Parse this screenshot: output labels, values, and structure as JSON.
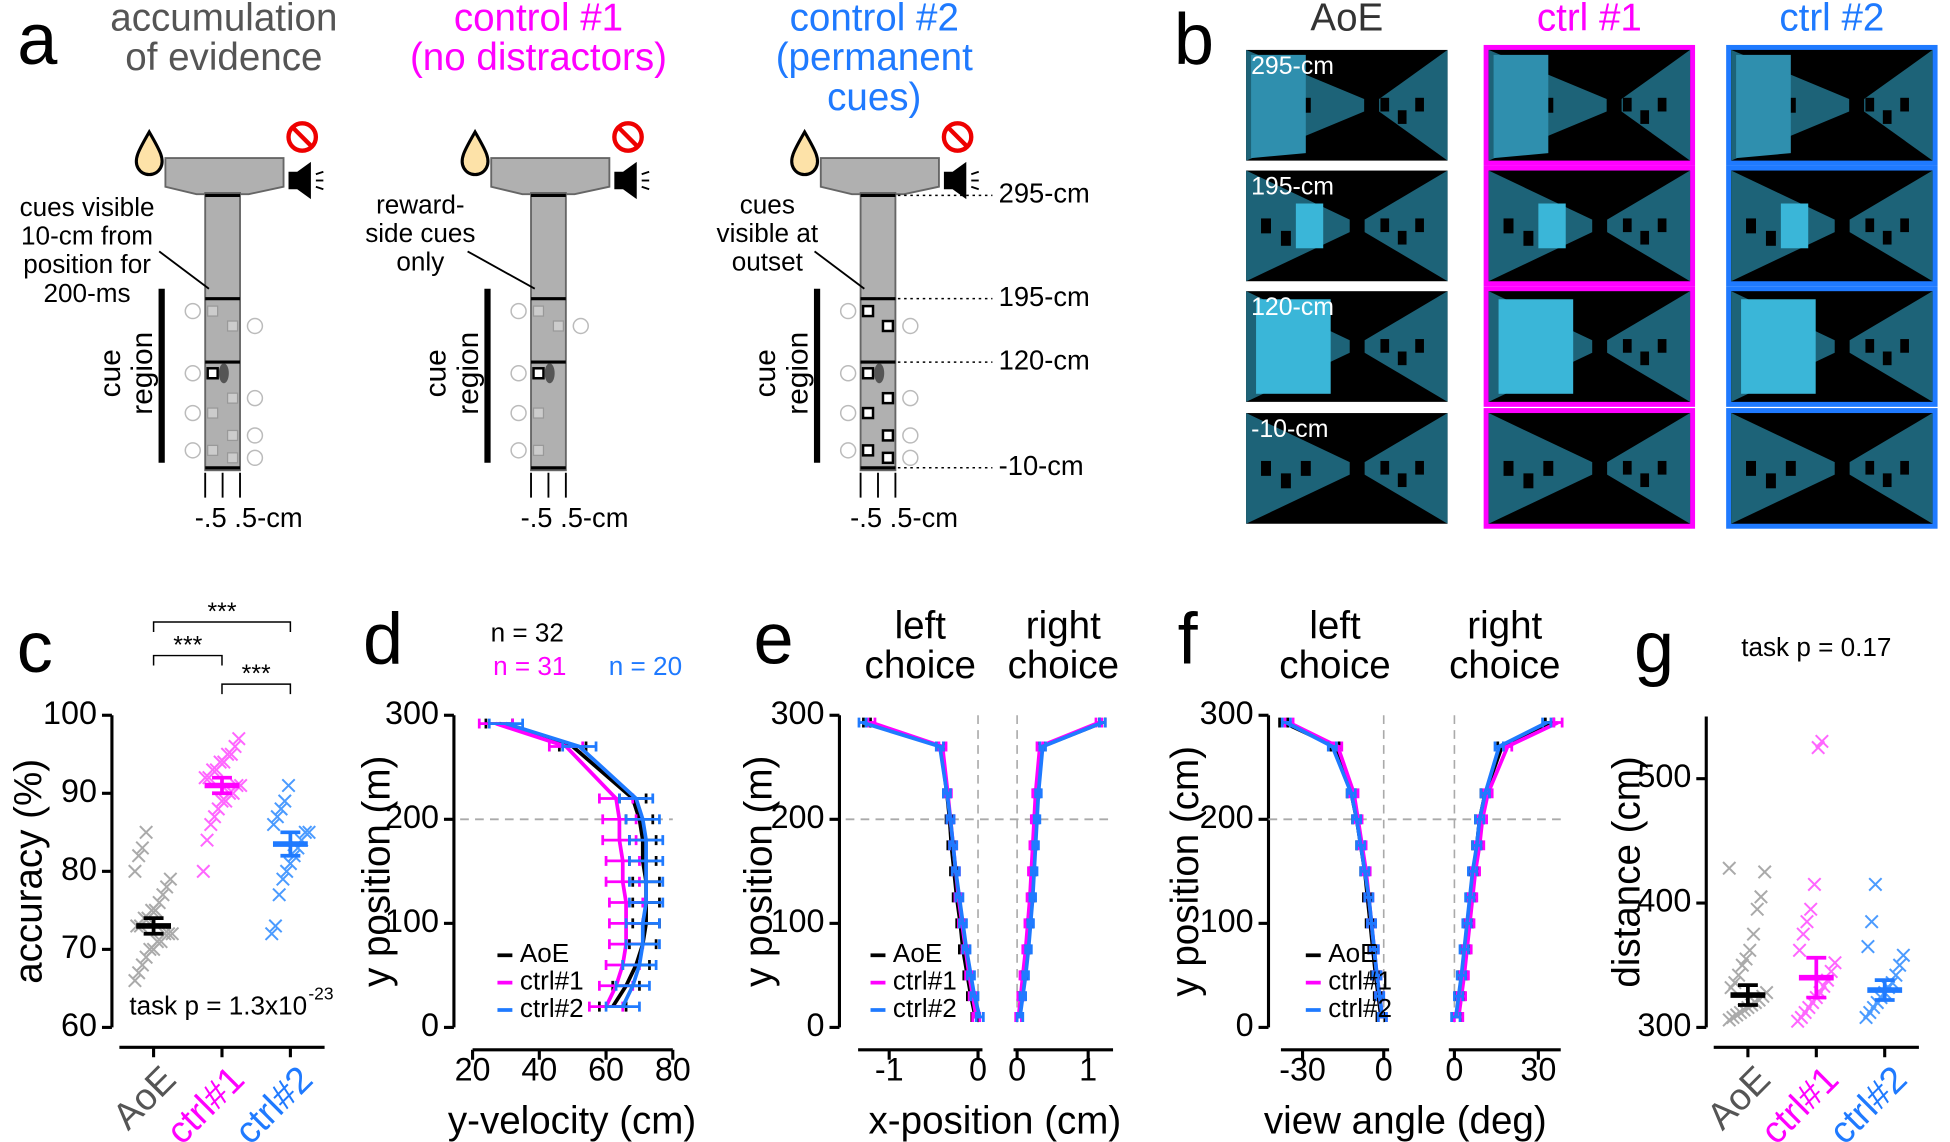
{
  "panel_a": {
    "letter": "a",
    "columns": [
      {
        "title": [
          "accumulation",
          "of evidence"
        ],
        "color": "#555555",
        "note": [
          "cues visible",
          "10-cm from",
          "position for",
          "200-ms"
        ]
      },
      {
        "title": [
          "control #1",
          "(no distractors)"
        ],
        "color": "#ff00ff",
        "note": [
          "reward-",
          "side cues",
          "only"
        ]
      },
      {
        "title": [
          "control #2",
          "(permanent",
          "cues)"
        ],
        "color": "#1f7aff",
        "note": [
          "cues",
          "visible at",
          "outset"
        ]
      }
    ],
    "cue_region": [
      "cue",
      "region"
    ],
    "width_label": "-.5 .5-cm",
    "positions": [
      "295-cm",
      "195-cm",
      "120-cm",
      "-10-cm"
    ]
  },
  "panel_b": {
    "letter": "b",
    "columns": [
      {
        "title": "AoE",
        "color": "#333333",
        "frame": "#ffffff"
      },
      {
        "title": "ctrl #1",
        "color": "#ff00ff",
        "frame": "#ff00ff"
      },
      {
        "title": "ctrl #2",
        "color": "#1f7aff",
        "frame": "#1f7aff"
      }
    ],
    "rows": [
      "295-cm",
      "195-cm",
      "120-cm",
      "-10-cm"
    ]
  },
  "chart_data": [
    {
      "type": "strip",
      "panel": "c",
      "ylabel": "accuracy (%)",
      "ylim": [
        60,
        100
      ],
      "yticks": [
        60,
        70,
        80,
        90,
        100
      ],
      "series": [
        {
          "name": "AoE",
          "color": "#aaaaaa",
          "mean_color": "#000000",
          "label_color": "#555555",
          "values": [
            66,
            67,
            68,
            69,
            70,
            70,
            71,
            71,
            72,
            72,
            72,
            73,
            73,
            74,
            74,
            75,
            75,
            76,
            77,
            78,
            79,
            80,
            82,
            83,
            85
          ],
          "mean": 73,
          "error": 1
        },
        {
          "name": "ctrl#1",
          "color": "#ff66ff",
          "mean_color": "#ff00ff",
          "label_color": "#ff00ff",
          "values": [
            80,
            84,
            86,
            87,
            88,
            89,
            89,
            90,
            90,
            91,
            91,
            92,
            92,
            93,
            93,
            94,
            94,
            95,
            95,
            96,
            97
          ],
          "mean": 91,
          "error": 1
        },
        {
          "name": "ctrl#2",
          "color": "#4b9bff",
          "mean_color": "#1f7aff",
          "label_color": "#1f7aff",
          "values": [
            72,
            73,
            77,
            79,
            80,
            81,
            82,
            83,
            84,
            85,
            85,
            86,
            87,
            88,
            89,
            91
          ],
          "mean": 83.5,
          "error": 1.5
        }
      ],
      "significance": [
        {
          "from": 0,
          "to": 2,
          "label": "***"
        },
        {
          "from": 0,
          "to": 1,
          "label": "***"
        },
        {
          "from": 1,
          "to": 2,
          "label": "***"
        }
      ],
      "annotation": {
        "text": "task p = 1.3x10",
        "exponent": "-23"
      }
    },
    {
      "type": "profile",
      "panel": "d",
      "ylabel": "y position (m)",
      "xlabel": "y-velocity (cm)",
      "ylim": [
        0,
        300
      ],
      "yticks": [
        0,
        100,
        200,
        300
      ],
      "reference_y": 200,
      "y": [
        20,
        40,
        60,
        80,
        100,
        120,
        140,
        160,
        180,
        200,
        220,
        270,
        292
      ],
      "legend": "lower left",
      "annotations": [
        "n = 32",
        "n = 31",
        "n = 20"
      ],
      "panels": [
        {
          "xlim": [
            20,
            80
          ],
          "xticks": [
            20,
            40,
            60,
            80
          ],
          "series": [
            {
              "name": "AoE",
              "color": "#000000",
              "x": [
                62,
                66,
                69,
                71,
                72,
                72,
                72,
                71,
                71,
                70,
                68,
                50,
                28
              ],
              "xerr": 4
            },
            {
              "name": "ctrl#1",
              "color": "#ff00ff",
              "x": [
                60,
                63,
                65,
                66,
                66,
                66,
                65,
                65,
                64,
                64,
                63,
                48,
                27
              ],
              "xerr": 5
            },
            {
              "name": "ctrl#2",
              "color": "#1f7aff",
              "x": [
                65,
                68,
                70,
                71,
                71,
                72,
                72,
                72,
                72,
                71,
                69,
                52,
                30
              ],
              "xerr": 5
            }
          ]
        }
      ]
    },
    {
      "type": "profile",
      "panel": "e",
      "ylabel": "y position (m)",
      "xlabel": "x-position (cm)",
      "ylim": [
        0,
        300
      ],
      "yticks": [
        0,
        100,
        200,
        300
      ],
      "reference_y": 200,
      "y": [
        10,
        30,
        50,
        75,
        100,
        125,
        150,
        175,
        200,
        225,
        270,
        293
      ],
      "legend": "lower left",
      "panels": [
        {
          "title": [
            "left",
            "choice"
          ],
          "xlim": [
            -1.35,
            0.05
          ],
          "xticks": [
            -1,
            0
          ],
          "reference_x": 0,
          "series": [
            {
              "name": "AoE",
              "color": "#000000",
              "x": [
                -0.03,
                -0.08,
                -0.12,
                -0.17,
                -0.2,
                -0.24,
                -0.27,
                -0.3,
                -0.32,
                -0.35,
                -0.42,
                -1.25
              ],
              "xerr": 0.04
            },
            {
              "name": "ctrl#1",
              "color": "#ff00ff",
              "x": [
                -0.02,
                -0.06,
                -0.1,
                -0.14,
                -0.18,
                -0.22,
                -0.25,
                -0.28,
                -0.31,
                -0.34,
                -0.4,
                -1.2
              ],
              "xerr": 0.04
            },
            {
              "name": "ctrl#2",
              "color": "#1f7aff",
              "x": [
                0.02,
                -0.04,
                -0.08,
                -0.13,
                -0.17,
                -0.21,
                -0.25,
                -0.28,
                -0.31,
                -0.35,
                -0.43,
                -1.3
              ],
              "xerr": 0.04
            }
          ]
        },
        {
          "title": [
            "right",
            "choice"
          ],
          "xlim": [
            -0.05,
            1.35
          ],
          "xticks": [
            0,
            1
          ],
          "reference_x": 0,
          "series": [
            {
              "color": "#000000",
              "x": [
                0.03,
                0.06,
                0.1,
                0.14,
                0.18,
                0.2,
                0.22,
                0.24,
                0.26,
                0.28,
                0.35,
                1.2
              ],
              "xerr": 0.04
            },
            {
              "color": "#ff00ff",
              "x": [
                0.02,
                0.05,
                0.08,
                0.12,
                0.15,
                0.18,
                0.2,
                0.22,
                0.24,
                0.26,
                0.32,
                1.15
              ],
              "xerr": 0.04
            },
            {
              "color": "#1f7aff",
              "x": [
                0.04,
                0.08,
                0.12,
                0.16,
                0.19,
                0.22,
                0.24,
                0.26,
                0.28,
                0.3,
                0.36,
                1.2
              ],
              "xerr": 0.04
            }
          ]
        }
      ]
    },
    {
      "type": "profile",
      "panel": "f",
      "ylabel": "y position (cm)",
      "xlabel": "view angle (deg)",
      "ylim": [
        0,
        300
      ],
      "yticks": [
        0,
        100,
        200,
        300
      ],
      "reference_y": 200,
      "y": [
        10,
        30,
        50,
        75,
        100,
        125,
        150,
        175,
        200,
        225,
        270,
        293
      ],
      "legend": "lower left",
      "panels": [
        {
          "title": [
            "left",
            "choice"
          ],
          "xlim": [
            -38,
            2
          ],
          "xticks": [
            -30,
            0
          ],
          "reference_x": 0,
          "series": [
            {
              "name": "AoE",
              "color": "#000000",
              "x": [
                -1,
                -2,
                -3,
                -4,
                -5,
                -6,
                -7,
                -8.5,
                -10,
                -12,
                -18,
                -37
              ],
              "xerr": 1.5
            },
            {
              "name": "ctrl#1",
              "color": "#ff00ff",
              "x": [
                -0.5,
                -1.5,
                -2.5,
                -3.5,
                -4.5,
                -5.5,
                -6.5,
                -8,
                -9.5,
                -11,
                -17,
                -35
              ],
              "xerr": 1.5
            },
            {
              "name": "ctrl#2",
              "color": "#1f7aff",
              "x": [
                -0.5,
                -1.5,
                -2.5,
                -3.5,
                -4.5,
                -5.5,
                -7,
                -8.5,
                -10,
                -12,
                -19,
                -36
              ],
              "xerr": 1.5
            }
          ]
        },
        {
          "title": [
            "right",
            "choice"
          ],
          "xlim": [
            -2,
            38
          ],
          "xticks": [
            0,
            30
          ],
          "reference_x": 0,
          "series": [
            {
              "color": "#000000",
              "x": [
                1,
                2,
                3,
                4,
                5,
                6,
                7,
                8,
                9,
                11,
                17,
                34
              ],
              "xerr": 1.5
            },
            {
              "color": "#ff00ff",
              "x": [
                1.5,
                2.5,
                3.5,
                4.5,
                5.5,
                6.5,
                7.5,
                9,
                10,
                12,
                19,
                37
              ],
              "xerr": 1.5
            },
            {
              "color": "#1f7aff",
              "x": [
                0.5,
                1.5,
                2.5,
                3.5,
                4.5,
                5.5,
                6.5,
                8,
                9,
                11,
                16,
                33
              ],
              "xerr": 1.5
            }
          ]
        }
      ]
    },
    {
      "type": "strip",
      "panel": "g",
      "ylabel": "distance (cm)",
      "title": "task p = 0.17",
      "ylim": [
        300,
        550
      ],
      "yticks": [
        300,
        400,
        500
      ],
      "series": [
        {
          "name": "AoE",
          "color": "#aaaaaa",
          "mean_color": "#000000",
          "label_color": "#555555",
          "values": [
            306,
            308,
            310,
            312,
            314,
            316,
            318,
            320,
            322,
            325,
            328,
            332,
            336,
            342,
            350,
            355,
            362,
            375,
            395,
            405,
            425,
            428
          ],
          "mean": 326,
          "error": 8
        },
        {
          "name": "ctrl#1",
          "color": "#ff66ff",
          "mean_color": "#ff00ff",
          "label_color": "#ff00ff",
          "values": [
            305,
            308,
            312,
            316,
            320,
            324,
            328,
            333,
            338,
            345,
            352,
            362,
            375,
            385,
            395,
            415,
            525,
            530
          ],
          "mean": 340,
          "error": 16
        },
        {
          "name": "ctrl#2",
          "color": "#4b9bff",
          "mean_color": "#1f7aff",
          "label_color": "#1f7aff",
          "values": [
            308,
            312,
            316,
            320,
            324,
            328,
            332,
            336,
            342,
            350,
            358,
            365,
            385,
            415
          ],
          "mean": 330,
          "error": 8
        }
      ]
    }
  ]
}
